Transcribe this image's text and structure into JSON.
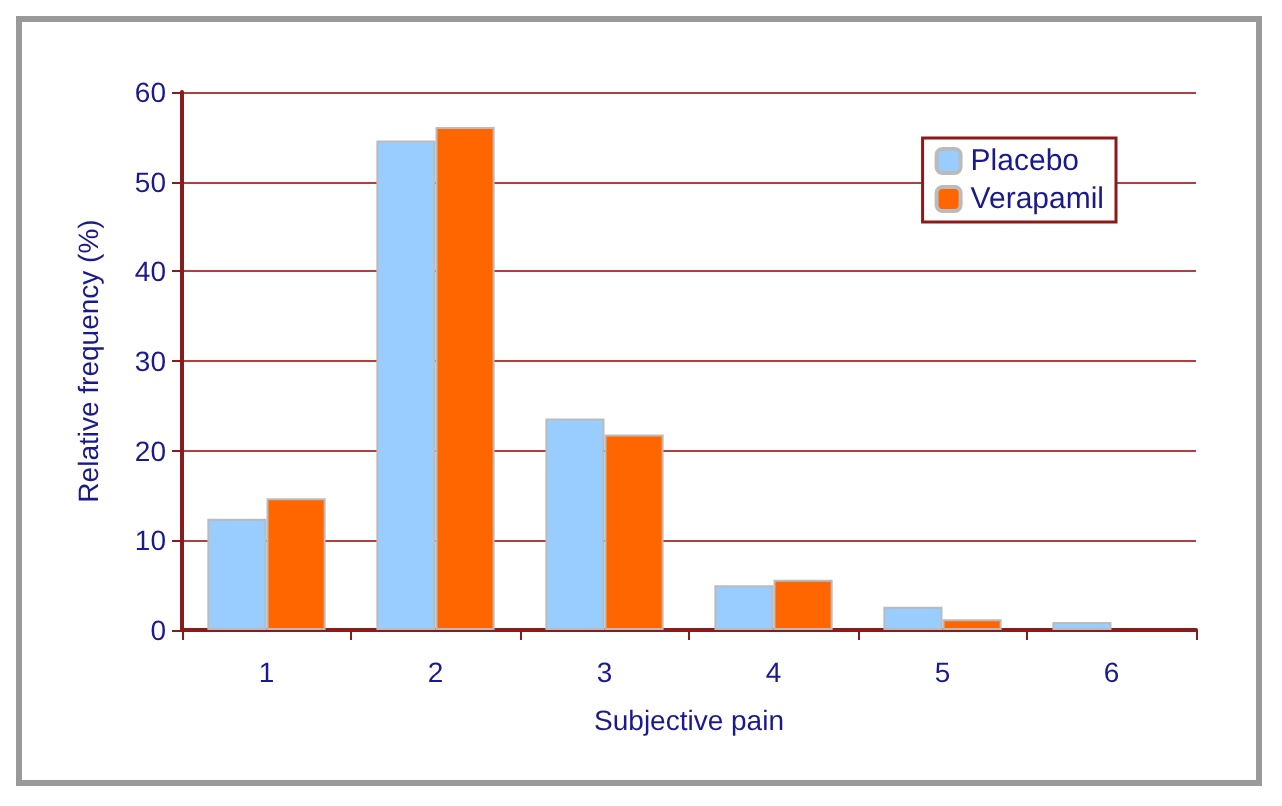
{
  "chart_data": {
    "type": "bar",
    "xlabel": "Subjective pain",
    "ylabel": "Relative frequency (%)",
    "categories": [
      "1",
      "2",
      "3",
      "4",
      "5",
      "6"
    ],
    "series": [
      {
        "name": "Placebo",
        "color": "#99ccff",
        "values": [
          12.4,
          54.6,
          23.6,
          5.0,
          2.6,
          0.9
        ]
      },
      {
        "name": "Verapamil",
        "color": "#ff6600",
        "values": [
          14.7,
          56.1,
          21.8,
          5.6,
          1.2,
          0
        ]
      }
    ],
    "ylim": [
      0,
      60
    ],
    "yticks": [
      0,
      10,
      20,
      30,
      40,
      50,
      60
    ],
    "grid": "y",
    "legend": "top right"
  }
}
